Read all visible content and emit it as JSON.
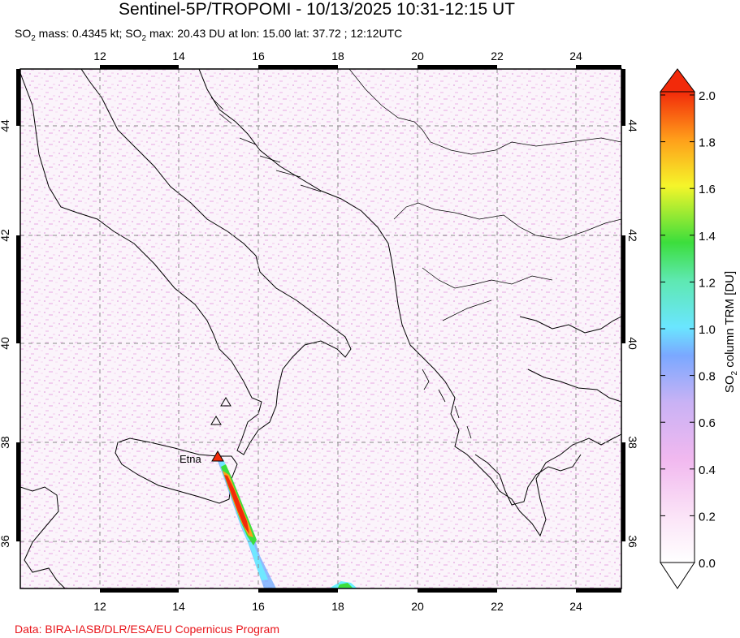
{
  "header": {
    "title": "Sentinel-5P/TROPOMI - 10/13/2025 10:31-12:15 UT",
    "subtitle_parts": {
      "so2_a": "SO",
      "sub_a": "2",
      "mass": " mass: 0.4345 kt; SO",
      "sub_b": "2",
      "rest": " max: 20.43 DU at lon: 15.00 lat: 37.72 ; 12:12UTC"
    }
  },
  "map": {
    "lon_range": [
      10,
      25
    ],
    "lat_range": [
      35,
      45
    ],
    "x_ticks": [
      "12",
      "14",
      "16",
      "18",
      "20",
      "22",
      "24"
    ],
    "y_ticks": [
      "36",
      "38",
      "40",
      "42",
      "44"
    ],
    "volcano_label": "Etna",
    "volcano": {
      "lon": 15.0,
      "lat": 37.72
    },
    "other_volcanoes": [
      {
        "lon": 15.21,
        "lat": 38.79
      },
      {
        "lon": 14.96,
        "lat": 38.4
      }
    ]
  },
  "colorbar": {
    "label_main": "SO",
    "label_sub": "2",
    "label_rest": " column TRM [DU]",
    "ticks": [
      "0.0",
      "0.2",
      "0.4",
      "0.6",
      "0.8",
      "1.0",
      "1.2",
      "1.4",
      "1.6",
      "1.8",
      "2.0"
    ],
    "colors": {
      "low": "#ffffff",
      "pink": "#f6c6f0",
      "blue": "#6aa7ff",
      "cyan": "#6af0ff",
      "green": "#3cde3c",
      "yellow": "#f5f52a",
      "orange": "#ff9d1a",
      "red": "#f22a0a"
    }
  },
  "footer": {
    "credit": "Data: BIRA-IASB/DLR/ESA/EU Copernicus Program"
  }
}
